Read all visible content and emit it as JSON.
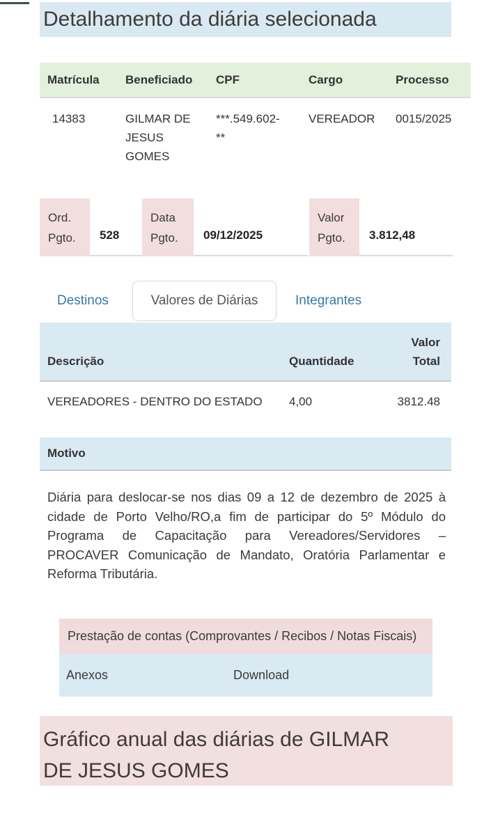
{
  "page": {
    "title": "Detalhamento da diária selecionada",
    "chart_heading": "Gráfico anual das diárias de GILMAR DE JESUS GOMES"
  },
  "colors": {
    "title_band_bg": "#d9e9f2",
    "table_header_green_bg": "#e3f0db",
    "pink_bg": "#f2dede",
    "info_blue_bg": "#d9eaf3",
    "tab_link_blue": "#3679ad",
    "text_dark": "#3a3a3a"
  },
  "beneficiary_table": {
    "headers": {
      "matricula": "Matrícula",
      "beneficiado": "Beneficiado",
      "cpf": "CPF",
      "cargo": "Cargo",
      "processo": "Processo"
    },
    "row": {
      "matricula": "14383",
      "beneficiado": "GILMAR DE JESUS GOMES",
      "cpf": "***.549.602-**",
      "cargo": "VEREADOR",
      "processo": "0015/2025"
    }
  },
  "payment": {
    "ord_label": "Ord. Pgto.",
    "ord_value": "528",
    "data_label": "Data Pgto.",
    "data_value": "09/12/2025",
    "valor_label": "Valor Pgto.",
    "valor_value": "3.812,48"
  },
  "tabs": [
    {
      "label": "Destinos",
      "active": false
    },
    {
      "label": "Valores de Diárias",
      "active": true
    },
    {
      "label": "Integrantes",
      "active": false
    }
  ],
  "valores_table": {
    "headers": {
      "descricao": "Descrição",
      "quantidade": "Quantidade",
      "valor_total": "Valor Total"
    },
    "row": {
      "descricao": "VEREADORES - DENTRO DO ESTADO",
      "quantidade": "4,00",
      "valor_total": "3812.48"
    }
  },
  "motivo": {
    "label": "Motivo",
    "text": "Diária para deslocar-se nos dias 09 a 12 de dezembro de 2025 à cidade de Porto Velho/RO,a fim de participar do 5º Módulo do Programa de Capacitação para Vereadores/Servidores – PROCAVER Comunicação de Mandato, Oratória Parlamentar e Reforma Tributária."
  },
  "prestacao": {
    "header": "Prestação de contas (Comprovantes / Recibos / Notas Fiscais)",
    "anexos_label": "Anexos",
    "download_label": "Download"
  }
}
